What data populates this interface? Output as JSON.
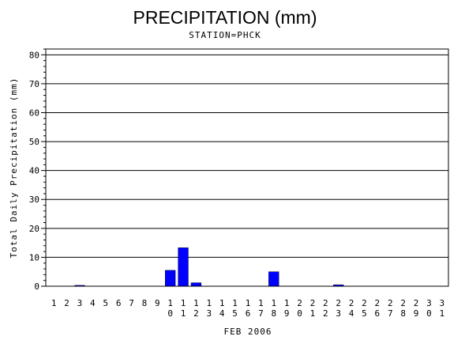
{
  "chart_data": {
    "type": "bar",
    "title": "PRECIPITATION (mm)",
    "subtitle": "STATION=PHCK",
    "xlabel": "FEB 2006",
    "ylabel": "Total Daily Precipitation (mm)",
    "ylim": [
      0,
      82
    ],
    "yticks": [
      0,
      10,
      20,
      30,
      40,
      50,
      60,
      70,
      80
    ],
    "grid": "horizontal",
    "bar_color": "#0000ff",
    "categories": [
      "1",
      "2",
      "3",
      "4",
      "5",
      "6",
      "7",
      "8",
      "9",
      "10",
      "11",
      "12",
      "13",
      "14",
      "15",
      "16",
      "17",
      "18",
      "19",
      "20",
      "21",
      "22",
      "23",
      "24",
      "25",
      "26",
      "27",
      "28",
      "29",
      "30",
      "31"
    ],
    "values": [
      0,
      0,
      0.3,
      0,
      0,
      0,
      0,
      0,
      0,
      5.5,
      13.3,
      1.2,
      0,
      0,
      0,
      0,
      0,
      5.0,
      0,
      0,
      0,
      0,
      0.5,
      0,
      0,
      0,
      0,
      0,
      0,
      0,
      0
    ]
  }
}
